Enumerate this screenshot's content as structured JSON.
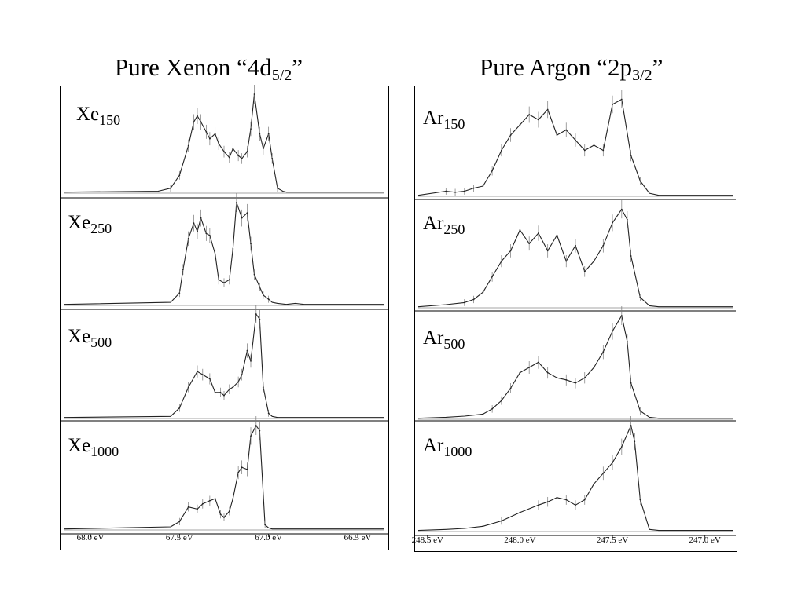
{
  "titles": {
    "left": {
      "main": "Pure Xenon “4d",
      "sub": "5/2",
      "end": "”"
    },
    "right": {
      "main": "Pure Argon “2p",
      "sub": "3/2",
      "end": "”"
    }
  },
  "chart_data": [
    {
      "type": "line",
      "title": "Pure Xenon “4d5/2”",
      "x_reversed": true,
      "xlim": [
        68.15,
        66.35
      ],
      "x_ticks": [
        68.0,
        67.5,
        67.0,
        66.5
      ],
      "x_tick_labels": [
        "68.0 eV",
        "67.5 eV",
        "67.0 eV",
        "66.5 eV"
      ],
      "y_ticks": "none",
      "series": [
        {
          "name": "Xe150",
          "label_main": "Xe",
          "label_sub": "150",
          "x": [
            67.62,
            67.55,
            67.5,
            67.45,
            67.42,
            67.4,
            67.38,
            67.35,
            67.33,
            67.3,
            67.28,
            67.25,
            67.22,
            67.2,
            67.17,
            67.15,
            67.12,
            67.1,
            67.08,
            67.05,
            67.03,
            67.0,
            66.98,
            66.95,
            66.92,
            66.9,
            66.85,
            66.8
          ],
          "y": [
            0.02,
            0.05,
            0.18,
            0.48,
            0.72,
            0.78,
            0.72,
            0.62,
            0.55,
            0.6,
            0.5,
            0.42,
            0.36,
            0.45,
            0.38,
            0.35,
            0.42,
            0.65,
            1.0,
            0.6,
            0.45,
            0.6,
            0.35,
            0.05,
            0.02,
            0.01,
            0.01,
            0.01
          ]
        },
        {
          "name": "Xe250",
          "label_main": "Xe",
          "label_sub": "250",
          "x": [
            67.55,
            67.5,
            67.48,
            67.45,
            67.42,
            67.4,
            67.38,
            67.35,
            67.33,
            67.3,
            67.28,
            67.25,
            67.22,
            67.2,
            67.18,
            67.15,
            67.12,
            67.1,
            67.08,
            67.05,
            67.03,
            67.0,
            66.98,
            66.95,
            66.9,
            66.85,
            66.8
          ],
          "y": [
            0.03,
            0.12,
            0.35,
            0.65,
            0.8,
            0.72,
            0.85,
            0.7,
            0.68,
            0.5,
            0.25,
            0.22,
            0.25,
            0.55,
            1.0,
            0.85,
            0.9,
            0.6,
            0.3,
            0.18,
            0.1,
            0.06,
            0.03,
            0.02,
            0.01,
            0.02,
            0.01
          ]
        },
        {
          "name": "Xe500",
          "label_main": "Xe",
          "label_sub": "500",
          "x": [
            67.55,
            67.5,
            67.45,
            67.4,
            67.37,
            67.33,
            67.3,
            67.27,
            67.25,
            67.22,
            67.2,
            67.17,
            67.15,
            67.12,
            67.1,
            67.07,
            67.05,
            67.03,
            67.0,
            66.98,
            66.95,
            66.92,
            66.9,
            66.85,
            66.8
          ],
          "y": [
            0.02,
            0.1,
            0.3,
            0.45,
            0.42,
            0.38,
            0.25,
            0.25,
            0.22,
            0.28,
            0.3,
            0.35,
            0.42,
            0.65,
            0.55,
            1.0,
            0.95,
            0.3,
            0.05,
            0.02,
            0.01,
            0.01,
            0.01,
            0.01,
            0.01
          ]
        },
        {
          "name": "Xe1000",
          "label_main": "Xe",
          "label_sub": "1000",
          "x": [
            67.55,
            67.5,
            67.45,
            67.4,
            67.37,
            67.33,
            67.3,
            67.27,
            67.25,
            67.22,
            67.2,
            67.17,
            67.15,
            67.12,
            67.1,
            67.07,
            67.05,
            67.02,
            67.0,
            66.98,
            66.95,
            66.9,
            66.85,
            66.8
          ],
          "y": [
            0.03,
            0.08,
            0.22,
            0.2,
            0.25,
            0.28,
            0.3,
            0.15,
            0.12,
            0.18,
            0.3,
            0.55,
            0.6,
            0.58,
            0.9,
            1.0,
            0.95,
            0.05,
            0.02,
            0.01,
            0.01,
            0.01,
            0.01,
            0.01
          ]
        }
      ]
    },
    {
      "type": "line",
      "title": "Pure Argon “2p3/2”",
      "x_reversed": true,
      "xlim": [
        248.55,
        246.85
      ],
      "x_ticks": [
        248.5,
        248.0,
        247.5,
        247.0
      ],
      "x_tick_labels": [
        "248.5 eV",
        "248.0 eV",
        "247.5 eV",
        "247.0 eV"
      ],
      "y_ticks": "none",
      "series": [
        {
          "name": "Ar150",
          "label_main": "Ar",
          "label_sub": "150",
          "x": [
            248.4,
            248.35,
            248.3,
            248.25,
            248.2,
            248.15,
            248.1,
            248.05,
            248.0,
            247.95,
            247.9,
            247.85,
            247.8,
            247.75,
            247.7,
            247.65,
            247.6,
            247.55,
            247.5,
            247.45,
            247.4,
            247.35,
            247.3,
            247.25,
            247.2
          ],
          "y": [
            0.05,
            0.04,
            0.05,
            0.08,
            0.1,
            0.25,
            0.45,
            0.6,
            0.7,
            0.8,
            0.75,
            0.85,
            0.6,
            0.65,
            0.55,
            0.45,
            0.5,
            0.45,
            0.9,
            0.95,
            0.4,
            0.15,
            0.03,
            0.01,
            0.01
          ]
        },
        {
          "name": "Ar250",
          "label_main": "Ar",
          "label_sub": "250",
          "x": [
            248.4,
            248.3,
            248.25,
            248.2,
            248.15,
            248.1,
            248.05,
            248.0,
            247.95,
            247.9,
            247.85,
            247.8,
            247.75,
            247.7,
            247.65,
            247.6,
            247.55,
            247.5,
            247.45,
            247.42,
            247.4,
            247.35,
            247.3,
            247.25,
            247.2
          ],
          "y": [
            0.03,
            0.05,
            0.08,
            0.15,
            0.3,
            0.45,
            0.55,
            0.75,
            0.62,
            0.72,
            0.55,
            0.7,
            0.45,
            0.6,
            0.35,
            0.45,
            0.6,
            0.82,
            0.95,
            0.85,
            0.5,
            0.1,
            0.02,
            0.01,
            0.01
          ]
        },
        {
          "name": "Ar500",
          "label_main": "Ar",
          "label_sub": "500",
          "x": [
            248.4,
            248.3,
            248.2,
            248.15,
            248.1,
            248.05,
            248.0,
            247.95,
            247.9,
            247.85,
            247.8,
            247.75,
            247.7,
            247.65,
            247.6,
            247.55,
            247.5,
            247.45,
            247.42,
            247.4,
            247.35,
            247.3,
            247.25,
            247.2
          ],
          "y": [
            0.02,
            0.03,
            0.05,
            0.1,
            0.18,
            0.3,
            0.45,
            0.5,
            0.55,
            0.45,
            0.4,
            0.38,
            0.35,
            0.4,
            0.5,
            0.65,
            0.85,
            1.0,
            0.75,
            0.35,
            0.08,
            0.02,
            0.01,
            0.01
          ]
        },
        {
          "name": "Ar1000",
          "label_main": "Ar",
          "label_sub": "1000",
          "x": [
            248.4,
            248.3,
            248.2,
            248.1,
            248.0,
            247.9,
            247.85,
            247.8,
            247.75,
            247.7,
            247.65,
            247.6,
            247.55,
            247.5,
            247.45,
            247.4,
            247.38,
            247.35,
            247.3,
            247.25,
            247.2
          ],
          "y": [
            0.02,
            0.03,
            0.05,
            0.1,
            0.18,
            0.25,
            0.28,
            0.32,
            0.3,
            0.25,
            0.3,
            0.45,
            0.55,
            0.65,
            0.8,
            1.0,
            0.85,
            0.3,
            0.02,
            0.01,
            0.01
          ]
        }
      ]
    }
  ]
}
